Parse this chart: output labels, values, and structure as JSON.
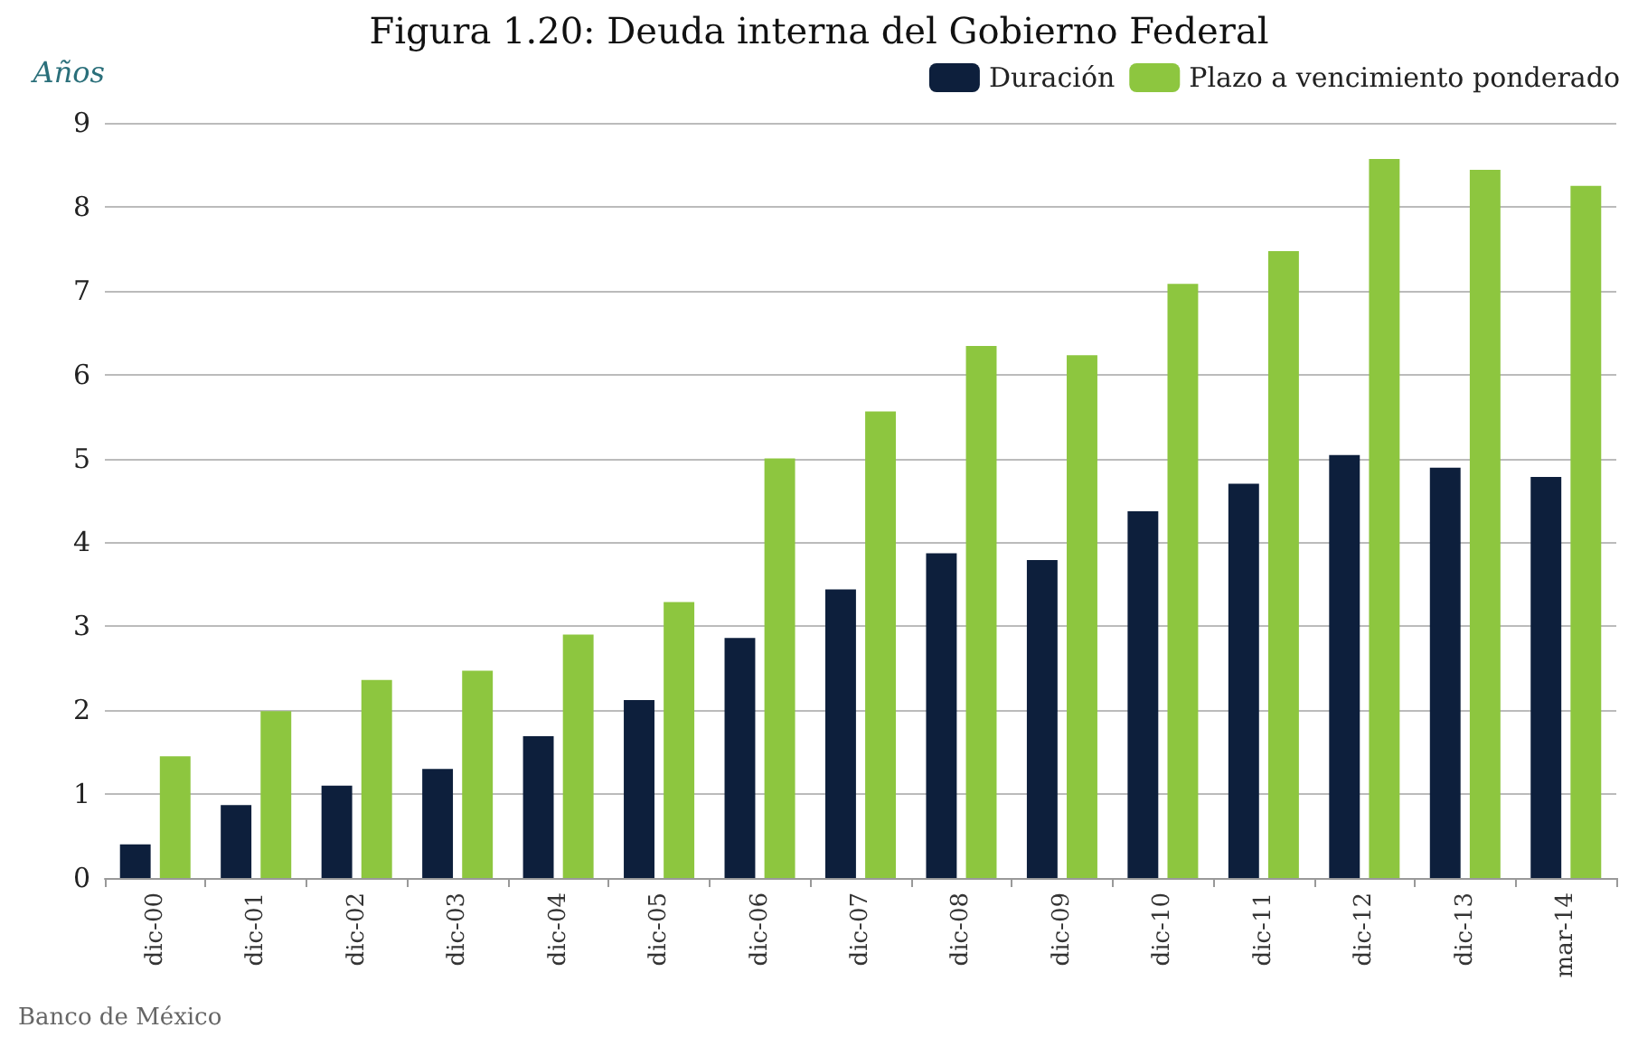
{
  "chart_data": {
    "type": "bar",
    "title": "Figura 1.20: Deuda interna del Gobierno Federal",
    "ylabel": "Años",
    "categories": [
      "dic-00",
      "dic-01",
      "dic-02",
      "dic-03",
      "dic-04",
      "dic-05",
      "dic-06",
      "dic-07",
      "dic-08",
      "dic-09",
      "dic-10",
      "dic-11",
      "dic-12",
      "dic-13",
      "mar-14"
    ],
    "series": [
      {
        "name": "Duración",
        "color": "#0d1f3c",
        "values": [
          0.4,
          0.87,
          1.1,
          1.3,
          1.69,
          2.12,
          2.86,
          3.44,
          3.87,
          3.79,
          4.37,
          4.7,
          5.04,
          4.89,
          4.78
        ]
      },
      {
        "name": "Plazo a vencimiento ponderado",
        "color": "#8dc63f",
        "values": [
          1.45,
          1.99,
          2.36,
          2.47,
          2.9,
          3.29,
          5.0,
          5.56,
          6.34,
          6.23,
          7.08,
          7.47,
          8.57,
          8.44,
          8.25
        ]
      }
    ],
    "ylim": [
      0,
      9
    ],
    "yticks": [
      0,
      1,
      2,
      3,
      4,
      5,
      6,
      7,
      8,
      9
    ],
    "grid": "y",
    "legend": "top right",
    "annotations": [
      "Banco de México"
    ]
  }
}
